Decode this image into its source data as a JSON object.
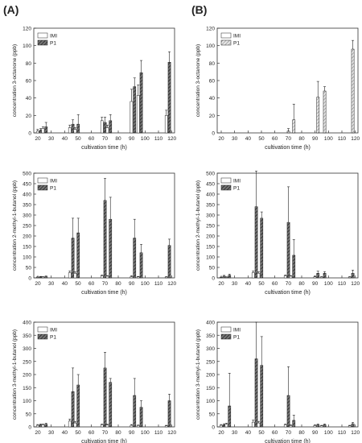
{
  "panel_labels": [
    "(A)",
    "(B)"
  ],
  "colors": {
    "axis": "#333333",
    "bar_edge": "#222222",
    "imi_fill": "#ffffff",
    "p1_dense": "#555555",
    "p1_light": "#9a9a9a"
  },
  "chart_data": [
    {
      "type": "bar",
      "panel": "A",
      "variant": "dense",
      "xlabel": "cultivation time (h)",
      "ylabel": "concentration 3-octanone (ppb)",
      "xlim": [
        17,
        122
      ],
      "xticks": [
        20,
        30,
        40,
        50,
        60,
        70,
        80,
        90,
        100,
        110,
        120
      ],
      "ylim": [
        0,
        120
      ],
      "yticks": [
        0,
        20,
        40,
        60,
        80,
        100,
        120
      ],
      "legend": [
        "IMI",
        "P1"
      ],
      "legend_position": "top-left",
      "x": [
        21,
        25,
        45,
        49,
        69,
        73,
        91,
        96,
        117
      ],
      "series": [
        {
          "name": "IMI",
          "values": [
            2,
            5,
            6,
            4,
            14,
            6,
            36,
            43,
            20
          ],
          "errors": [
            2,
            2,
            3,
            2,
            4,
            3,
            14,
            12,
            6
          ]
        },
        {
          "name": "P1",
          "values": [
            3,
            7,
            10,
            10,
            12,
            14,
            53,
            69,
            81
          ],
          "errors": [
            2,
            5,
            5,
            11,
            6,
            7,
            10,
            14,
            12
          ]
        }
      ]
    },
    {
      "type": "bar",
      "panel": "B",
      "variant": "light",
      "xlabel": "cultivation time (h)",
      "ylabel": "concentration 3-octanone (ppb)",
      "xlim": [
        17,
        122
      ],
      "xticks": [
        20,
        30,
        40,
        50,
        60,
        70,
        80,
        90,
        100,
        110,
        120
      ],
      "ylim": [
        0,
        120
      ],
      "yticks": [
        0,
        20,
        40,
        60,
        80,
        100,
        120
      ],
      "legend": [
        "IMI",
        "P1"
      ],
      "legend_position": "top-left",
      "x": [
        69,
        73,
        91,
        96,
        117
      ],
      "series": [
        {
          "name": "IMI",
          "values": [
            0,
            0,
            0,
            0,
            0
          ],
          "errors": [
            0,
            0,
            0,
            0,
            0
          ]
        },
        {
          "name": "P1",
          "values": [
            2,
            15,
            41,
            48,
            96
          ],
          "errors": [
            3,
            18,
            18,
            5,
            10
          ]
        }
      ]
    },
    {
      "type": "bar",
      "panel": "A",
      "variant": "dense",
      "xlabel": "cultivation time (h)",
      "ylabel": "concentration 2-methyl-1-butanol (ppb)",
      "xlim": [
        17,
        122
      ],
      "xticks": [
        20,
        30,
        40,
        50,
        60,
        70,
        80,
        90,
        100,
        110,
        120
      ],
      "ylim": [
        0,
        500
      ],
      "yticks": [
        0,
        50,
        100,
        150,
        200,
        250,
        300,
        350,
        400,
        450,
        500
      ],
      "legend": [
        "IMI",
        "P1"
      ],
      "legend_position": "top-left",
      "x": [
        21,
        25,
        45,
        49,
        69,
        73,
        91,
        96,
        117
      ],
      "series": [
        {
          "name": "IMI",
          "values": [
            3,
            4,
            25,
            22,
            10,
            8,
            6,
            5,
            4
          ],
          "errors": [
            2,
            2,
            8,
            7,
            4,
            3,
            3,
            2,
            2
          ]
        },
        {
          "name": "P1",
          "values": [
            5,
            6,
            190,
            215,
            370,
            280,
            190,
            120,
            155
          ],
          "errors": [
            2,
            3,
            95,
            70,
            105,
            105,
            90,
            40,
            30
          ]
        }
      ]
    },
    {
      "type": "bar",
      "panel": "B",
      "variant": "dense",
      "xlabel": "cultivation time (h)",
      "ylabel": "concentration 2-methyl-1-butanol (ppb)",
      "xlim": [
        17,
        122
      ],
      "xticks": [
        20,
        30,
        40,
        50,
        60,
        70,
        80,
        90,
        100,
        110,
        120
      ],
      "ylim": [
        0,
        500
      ],
      "yticks": [
        0,
        50,
        100,
        150,
        200,
        250,
        300,
        350,
        400,
        450,
        500
      ],
      "legend": [
        "IMI",
        "P1"
      ],
      "legend_position": "top-left",
      "x": [
        21,
        25,
        45,
        49,
        69,
        73,
        91,
        96,
        117
      ],
      "series": [
        {
          "name": "IMI",
          "values": [
            2,
            3,
            25,
            22,
            10,
            8,
            5,
            4,
            4
          ],
          "errors": [
            2,
            2,
            8,
            7,
            4,
            3,
            3,
            2,
            2
          ]
        },
        {
          "name": "P1",
          "values": [
            8,
            12,
            340,
            285,
            265,
            108,
            22,
            22,
            22
          ],
          "errors": [
            4,
            6,
            170,
            30,
            170,
            75,
            10,
            8,
            15
          ]
        }
      ]
    },
    {
      "type": "bar",
      "panel": "A",
      "variant": "dense",
      "xlabel": "cultivation time (h)",
      "ylabel": "concentration 3-methyl-1-butanol (ppb)",
      "xlim": [
        17,
        122
      ],
      "xticks": [
        20,
        30,
        40,
        50,
        60,
        70,
        80,
        90,
        100,
        110,
        120
      ],
      "ylim": [
        0,
        400
      ],
      "yticks": [
        0,
        50,
        100,
        150,
        200,
        250,
        300,
        350,
        400
      ],
      "legend": [
        "IMI",
        "P1"
      ],
      "legend_position": "top-left",
      "x": [
        21,
        25,
        45,
        49,
        69,
        73,
        91,
        96,
        117
      ],
      "series": [
        {
          "name": "IMI",
          "values": [
            6,
            8,
            22,
            15,
            8,
            7,
            6,
            5,
            4
          ],
          "errors": [
            3,
            3,
            8,
            6,
            3,
            3,
            3,
            2,
            2
          ]
        },
        {
          "name": "P1",
          "values": [
            8,
            10,
            135,
            160,
            225,
            170,
            120,
            75,
            100
          ],
          "errors": [
            3,
            4,
            90,
            40,
            60,
            15,
            65,
            25,
            25
          ]
        }
      ]
    },
    {
      "type": "bar",
      "panel": "B",
      "variant": "dense",
      "xlabel": "cultivation time (h)",
      "ylabel": "concentration 3-methyl-1-butanol (ppb)",
      "xlim": [
        17,
        122
      ],
      "xticks": [
        20,
        30,
        40,
        50,
        60,
        70,
        80,
        90,
        100,
        110,
        120
      ],
      "ylim": [
        0,
        400
      ],
      "yticks": [
        0,
        50,
        100,
        150,
        200,
        250,
        300,
        350,
        400
      ],
      "legend": [
        "IMI",
        "P1"
      ],
      "legend_position": "top-left",
      "x": [
        21,
        25,
        45,
        49,
        69,
        73,
        91,
        96,
        117
      ],
      "series": [
        {
          "name": "IMI",
          "values": [
            6,
            10,
            18,
            15,
            8,
            5,
            5,
            4,
            4
          ],
          "errors": [
            3,
            4,
            8,
            6,
            3,
            3,
            2,
            2,
            2
          ]
        },
        {
          "name": "P1",
          "values": [
            8,
            80,
            260,
            235,
            120,
            25,
            8,
            8,
            12
          ],
          "errors": [
            4,
            125,
            140,
            110,
            110,
            20,
            3,
            3,
            5
          ]
        }
      ]
    }
  ]
}
